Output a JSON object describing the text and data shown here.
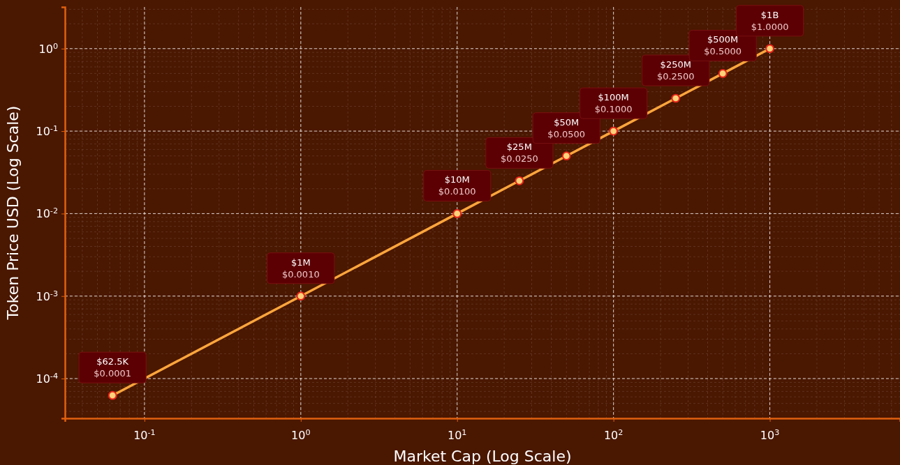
{
  "chart_data": {
    "type": "line",
    "xlabel": "Market Cap (Log Scale)",
    "ylabel": "Token Price USD (Log Scale)",
    "x": [
      0.0625,
      1,
      10,
      25,
      50,
      100,
      250,
      500,
      1000
    ],
    "series": [
      {
        "color": "#ffa63d",
        "values": [
          6.25e-05,
          0.001,
          0.01,
          0.025,
          0.05,
          0.1,
          0.25,
          0.5,
          1
        ],
        "value_labels": [
          "$62.5K\n$0.0001",
          "$1M\n$0.0010",
          "$10M\n$0.0100",
          "$25M\n$0.0250",
          "$50M\n$0.0500",
          "$100M\n$0.1000",
          "$250M\n$0.2500",
          "$500M\n$0.5000",
          "$1B\n$1.0000"
        ]
      }
    ],
    "log": "xy",
    "xlim": [
      0.031,
      6800
    ],
    "ylim": [
      3.3e-05,
      3.2
    ],
    "xticks": [
      {
        "value": 0.1,
        "label": "10$^{-1}$"
      },
      {
        "value": 1,
        "label": "10$^{0}$"
      },
      {
        "value": 10,
        "label": "10$^{1}$"
      },
      {
        "value": 100,
        "label": "10$^{2}$"
      },
      {
        "value": 1000,
        "label": "10$^{3}$"
      }
    ],
    "yticks": [
      {
        "value": 0.0001,
        "label": "10$^{-4}$"
      },
      {
        "value": 0.001,
        "label": "10$^{-3}$"
      },
      {
        "value": 0.01,
        "label": "10$^{-2}$"
      },
      {
        "value": 0.1,
        "label": "10$^{-1}$"
      },
      {
        "value": 1,
        "label": "10$^{0}$"
      }
    ],
    "grid": true,
    "marker": "circle",
    "line_style": "solid"
  }
}
